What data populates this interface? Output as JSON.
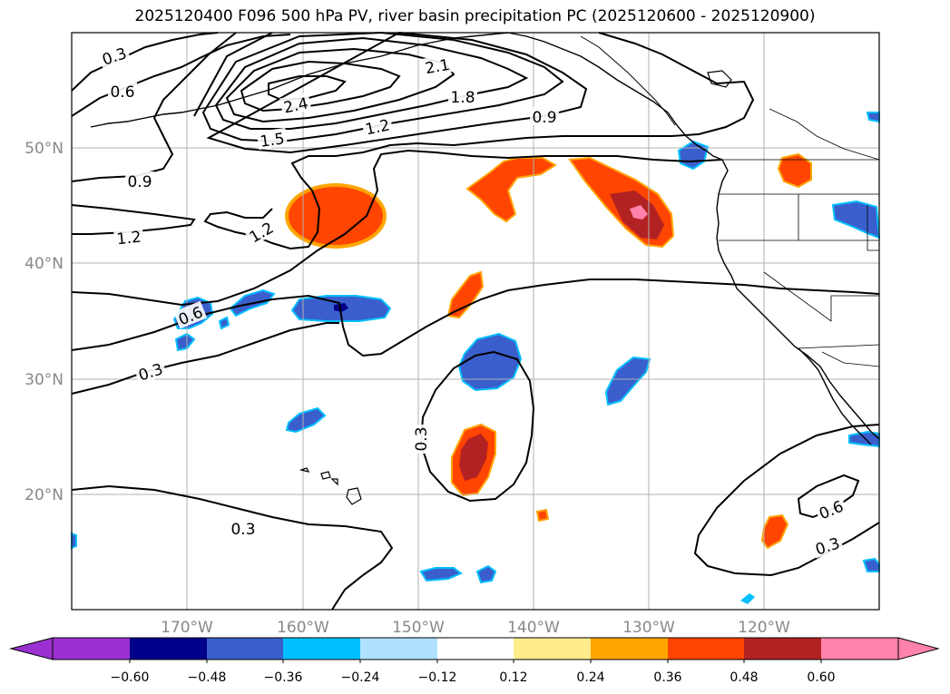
{
  "title": "2025120400 F096 500 hPa PV, river basin precipitation PC (2025120600 - 2025120900)",
  "map": {
    "lon_labels": [
      "170°W",
      "160°W",
      "150°W",
      "140°W",
      "130°W",
      "120°W"
    ],
    "lat_labels": [
      "50°N",
      "40°N",
      "30°N",
      "20°N"
    ],
    "contour_labels": [
      "0.3",
      "0.6",
      "2.1",
      "1.8",
      "2.4",
      "1.5",
      "1.2",
      "0.9",
      "0.9",
      "1.2",
      "1.2",
      "0.6",
      "0.3",
      "0.3",
      "0.3",
      "0.6",
      "0.3"
    ]
  },
  "colorbar": {
    "tick_labels": [
      "−0.60",
      "−0.48",
      "−0.36",
      "−0.24",
      "−0.12",
      "0.12",
      "0.24",
      "0.36",
      "0.48",
      "0.60"
    ],
    "colors": [
      "#9b30d0",
      "#00008b",
      "#3a5fcd",
      "#00bfff",
      "#b0e2ff",
      "#ffffff",
      "#ffec8b",
      "#ffa500",
      "#ff4500",
      "#b22222",
      "#ff82ab",
      "#ff82ab"
    ]
  },
  "palette": {
    "blue_dark": "#00008b",
    "blue_mid": "#3a5fcd",
    "blue_light": "#00bfff",
    "blue_pale": "#b0e2ff",
    "yellow": "#ffec8b",
    "orange": "#ffa500",
    "red_orange": "#ff4500",
    "firebrick": "#b22222",
    "pink": "#ff82ab"
  }
}
